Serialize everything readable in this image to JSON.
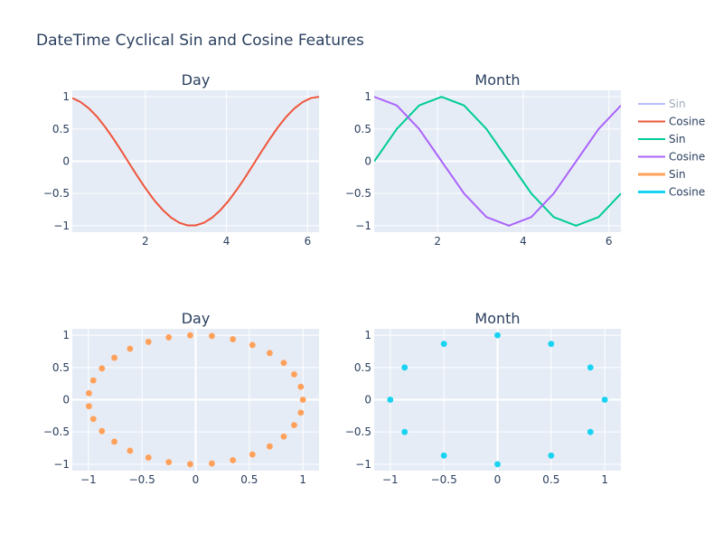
{
  "title": "DateTime Cyclical Sin and Cosine Features",
  "chart_data": [
    {
      "type": "line",
      "title": "Day",
      "xlim": [
        0.2,
        6.28
      ],
      "ylim": [
        -1.1,
        1.1
      ],
      "xticks": [
        2,
        4,
        6
      ],
      "yticks": [
        -1,
        -0.5,
        0,
        0.5,
        1
      ],
      "series": [
        {
          "name": "Cosine",
          "color": "#ef553b",
          "x": [
            0.203,
            0.405,
            0.608,
            0.811,
            1.013,
            1.216,
            1.419,
            1.621,
            1.824,
            2.027,
            2.229,
            2.432,
            2.635,
            2.837,
            3.04,
            3.243,
            3.445,
            3.648,
            3.851,
            4.053,
            4.256,
            4.459,
            4.661,
            4.864,
            5.067,
            5.269,
            5.472,
            5.675,
            5.877,
            6.08,
            6.283
          ],
          "y": [
            0.98,
            0.918,
            0.821,
            0.69,
            0.529,
            0.347,
            0.151,
            -0.051,
            -0.251,
            -0.44,
            -0.612,
            -0.758,
            -0.874,
            -0.954,
            -0.995,
            -0.995,
            -0.954,
            -0.874,
            -0.758,
            -0.612,
            -0.44,
            -0.251,
            -0.051,
            0.151,
            0.347,
            0.529,
            0.69,
            0.821,
            0.918,
            0.98,
            1.0
          ]
        }
      ]
    },
    {
      "type": "line",
      "title": "Month",
      "xlim": [
        0.52,
        6.28
      ],
      "ylim": [
        -1.1,
        1.1
      ],
      "xticks": [
        2,
        4,
        6
      ],
      "yticks": [
        -1,
        -0.5,
        0,
        0.5,
        1
      ],
      "series": [
        {
          "name": "Sin",
          "color": "#00cc96",
          "x": [
            0.524,
            1.047,
            1.571,
            2.094,
            2.618,
            3.142,
            3.665,
            4.189,
            4.712,
            5.236,
            5.76,
            6.283
          ],
          "y": [
            0.0,
            0.5,
            0.866,
            1.0,
            0.866,
            0.5,
            0.0,
            -0.5,
            -0.866,
            -1.0,
            -0.866,
            -0.5
          ]
        },
        {
          "name": "Cosine",
          "color": "#ab63fa",
          "x": [
            0.524,
            1.047,
            1.571,
            2.094,
            2.618,
            3.142,
            3.665,
            4.189,
            4.712,
            5.236,
            5.76,
            6.283
          ],
          "y": [
            1.0,
            0.866,
            0.5,
            0.0,
            -0.5,
            -0.866,
            -1.0,
            -0.866,
            -0.5,
            0.0,
            0.5,
            0.866
          ]
        }
      ]
    },
    {
      "type": "scatter",
      "title": "Day",
      "xlim": [
        -1.15,
        1.15
      ],
      "ylim": [
        -1.1,
        1.1
      ],
      "xticks": [
        -1,
        -0.5,
        0,
        0.5,
        1
      ],
      "yticks": [
        -1,
        -0.5,
        0,
        0.5,
        1
      ],
      "series": [
        {
          "name": "Sin",
          "color": "#ffa15a",
          "x": [
            1.0,
            0.98,
            0.918,
            0.821,
            0.69,
            0.529,
            0.347,
            0.151,
            -0.051,
            -0.251,
            -0.44,
            -0.612,
            -0.758,
            -0.874,
            -0.954,
            -0.995,
            -0.995,
            -0.954,
            -0.874,
            -0.758,
            -0.612,
            -0.44,
            -0.251,
            -0.051,
            0.151,
            0.347,
            0.529,
            0.69,
            0.821,
            0.918,
            0.98
          ],
          "y": [
            0.0,
            0.201,
            0.394,
            0.571,
            0.724,
            0.849,
            0.938,
            0.989,
            0.999,
            0.968,
            0.898,
            0.791,
            0.651,
            0.486,
            0.299,
            0.101,
            -0.101,
            -0.299,
            -0.486,
            -0.651,
            -0.791,
            -0.898,
            -0.968,
            -0.999,
            -0.989,
            -0.938,
            -0.849,
            -0.724,
            -0.571,
            -0.394,
            -0.201
          ]
        }
      ]
    },
    {
      "type": "scatter",
      "title": "Month",
      "xlim": [
        -1.15,
        1.15
      ],
      "ylim": [
        -1.1,
        1.1
      ],
      "xticks": [
        -1,
        -0.5,
        0,
        0.5,
        1
      ],
      "yticks": [
        -1,
        -0.5,
        0,
        0.5,
        1
      ],
      "series": [
        {
          "name": "Cosine",
          "color": "#19d3f3",
          "x": [
            1.0,
            0.866,
            0.5,
            0.0,
            -0.5,
            -0.866,
            -1.0,
            -0.866,
            -0.5,
            0.0,
            0.5,
            0.866
          ],
          "y": [
            0.0,
            0.5,
            0.866,
            1.0,
            0.866,
            0.5,
            0.0,
            -0.5,
            -0.866,
            -1.0,
            -0.866,
            -0.5
          ]
        }
      ]
    }
  ],
  "legend": {
    "placement": "right",
    "items": [
      {
        "label": "Sin",
        "color": "#636efa",
        "dimmed": true
      },
      {
        "label": "Cosine",
        "color": "#ef553b"
      },
      {
        "label": "Sin",
        "color": "#00cc96"
      },
      {
        "label": "Cosine",
        "color": "#ab63fa"
      },
      {
        "label": "Sin",
        "color": "#ffa15a"
      },
      {
        "label": "Cosine",
        "color": "#19d3f3"
      }
    ]
  }
}
